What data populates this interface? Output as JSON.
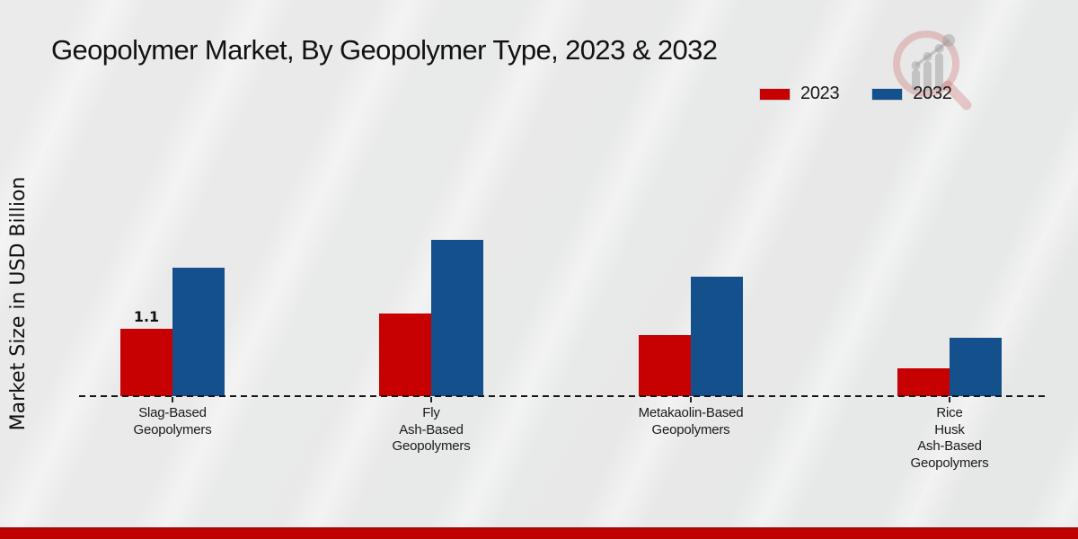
{
  "title": "Geopolymer Market, By Geopolymer Type, 2023 & 2032",
  "legend": {
    "items": [
      {
        "label": "2023",
        "color": "#c70101"
      },
      {
        "label": "2032",
        "color": "#14508c"
      }
    ]
  },
  "watermark_icon": "magnifier-bar-chart-logo",
  "footer_accent_color": "#c00101",
  "chart_data": {
    "type": "bar",
    "title": "Geopolymer Market, By Geopolymer Type, 2023 & 2032",
    "xlabel": "",
    "ylabel": "Market Size in USD Billion",
    "categories": [
      "Slag-Based\nGeopolymers",
      "Fly\nAsh-Based\nGeopolymers",
      "Metakaolin-Based\nGeopolymers",
      "Rice\nHusk\nAsh-Based\nGeopolymers"
    ],
    "series": [
      {
        "name": "2023",
        "color": "#c70101",
        "values": [
          1.1,
          1.35,
          1.0,
          0.45
        ],
        "data_labels": [
          "1.1",
          "",
          "",
          ""
        ]
      },
      {
        "name": "2032",
        "color": "#14508c",
        "values": [
          2.1,
          2.55,
          1.95,
          0.95
        ],
        "data_labels": [
          "",
          "",
          "",
          ""
        ]
      }
    ],
    "ylim": [
      0,
      3.2
    ],
    "grid": false,
    "y_axis_ticks_visible": false,
    "x_baseline_style": "dashed",
    "legend_position": "top-right"
  }
}
